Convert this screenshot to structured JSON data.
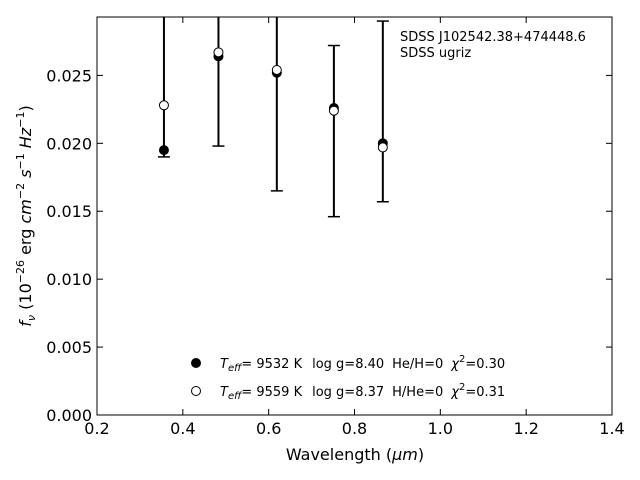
{
  "chart_data": {
    "type": "scatter",
    "title": "",
    "xlabel_prefix": "Wavelength (",
    "xlabel_unit": "μm",
    "xlabel_suffix": ")",
    "ylabel": {
      "f": "f",
      "nu": "ν",
      "open": " (10",
      "exp1": "−26",
      "mid": " erg ",
      "cm": "cm",
      "exp2": "−2",
      "s": " s",
      "exp3": "−1",
      "hz": " Hz",
      "exp4": "−1",
      "close": ")"
    },
    "xlim": [
      0.2,
      1.4
    ],
    "ylim": [
      0.0,
      0.0293
    ],
    "xticks": [
      0.2,
      0.4,
      0.6,
      0.8,
      1.0,
      1.2,
      1.4
    ],
    "xtick_labels": [
      "0.2",
      "0.4",
      "0.6",
      "0.8",
      "1.0",
      "1.2",
      "1.4"
    ],
    "yticks": [
      0.0,
      0.005,
      0.01,
      0.015,
      0.02,
      0.025
    ],
    "ytick_labels": [
      "0.000",
      "0.005",
      "0.010",
      "0.015",
      "0.020",
      "0.025"
    ],
    "grid": false,
    "annotation": {
      "line1": "SDSS J102542.38+474448.6",
      "line2": "SDSS ugriz"
    },
    "errorbars": [
      {
        "x": 0.356,
        "low": 0.019,
        "high": 0.0293,
        "cap_low": true,
        "cap_high": false
      },
      {
        "x": 0.483,
        "low": 0.0198,
        "high": 0.0293,
        "cap_low": true,
        "cap_high": false
      },
      {
        "x": 0.619,
        "low": 0.0165,
        "high": 0.0293,
        "cap_low": true,
        "cap_high": false
      },
      {
        "x": 0.752,
        "low": 0.0146,
        "high": 0.0272,
        "cap_low": true,
        "cap_high": true
      },
      {
        "x": 0.866,
        "low": 0.0157,
        "high": 0.029,
        "cap_low": true,
        "cap_high": true
      }
    ],
    "series": [
      {
        "marker": "filled",
        "x": [
          0.356,
          0.483,
          0.619,
          0.752,
          0.866
        ],
        "y": [
          0.0195,
          0.0264,
          0.0252,
          0.0226,
          0.02
        ],
        "legend": {
          "t": "T",
          "sub": "eff",
          "temp": "=  9532 K",
          "logg": "log g=8.40",
          "comp": "He/H=0",
          "chi": "χ",
          "chi_exp": "2",
          "chi_val": "=0.30"
        }
      },
      {
        "marker": "open",
        "x": [
          0.356,
          0.483,
          0.619,
          0.752,
          0.866
        ],
        "y": [
          0.0228,
          0.0267,
          0.0254,
          0.0224,
          0.0197
        ],
        "legend": {
          "t": "T",
          "sub": "eff",
          "temp": "=  9559 K",
          "logg": "log g=8.37",
          "comp": "H/He=0",
          "chi": "χ",
          "chi_exp": "2",
          "chi_val": "=0.31"
        }
      }
    ]
  }
}
